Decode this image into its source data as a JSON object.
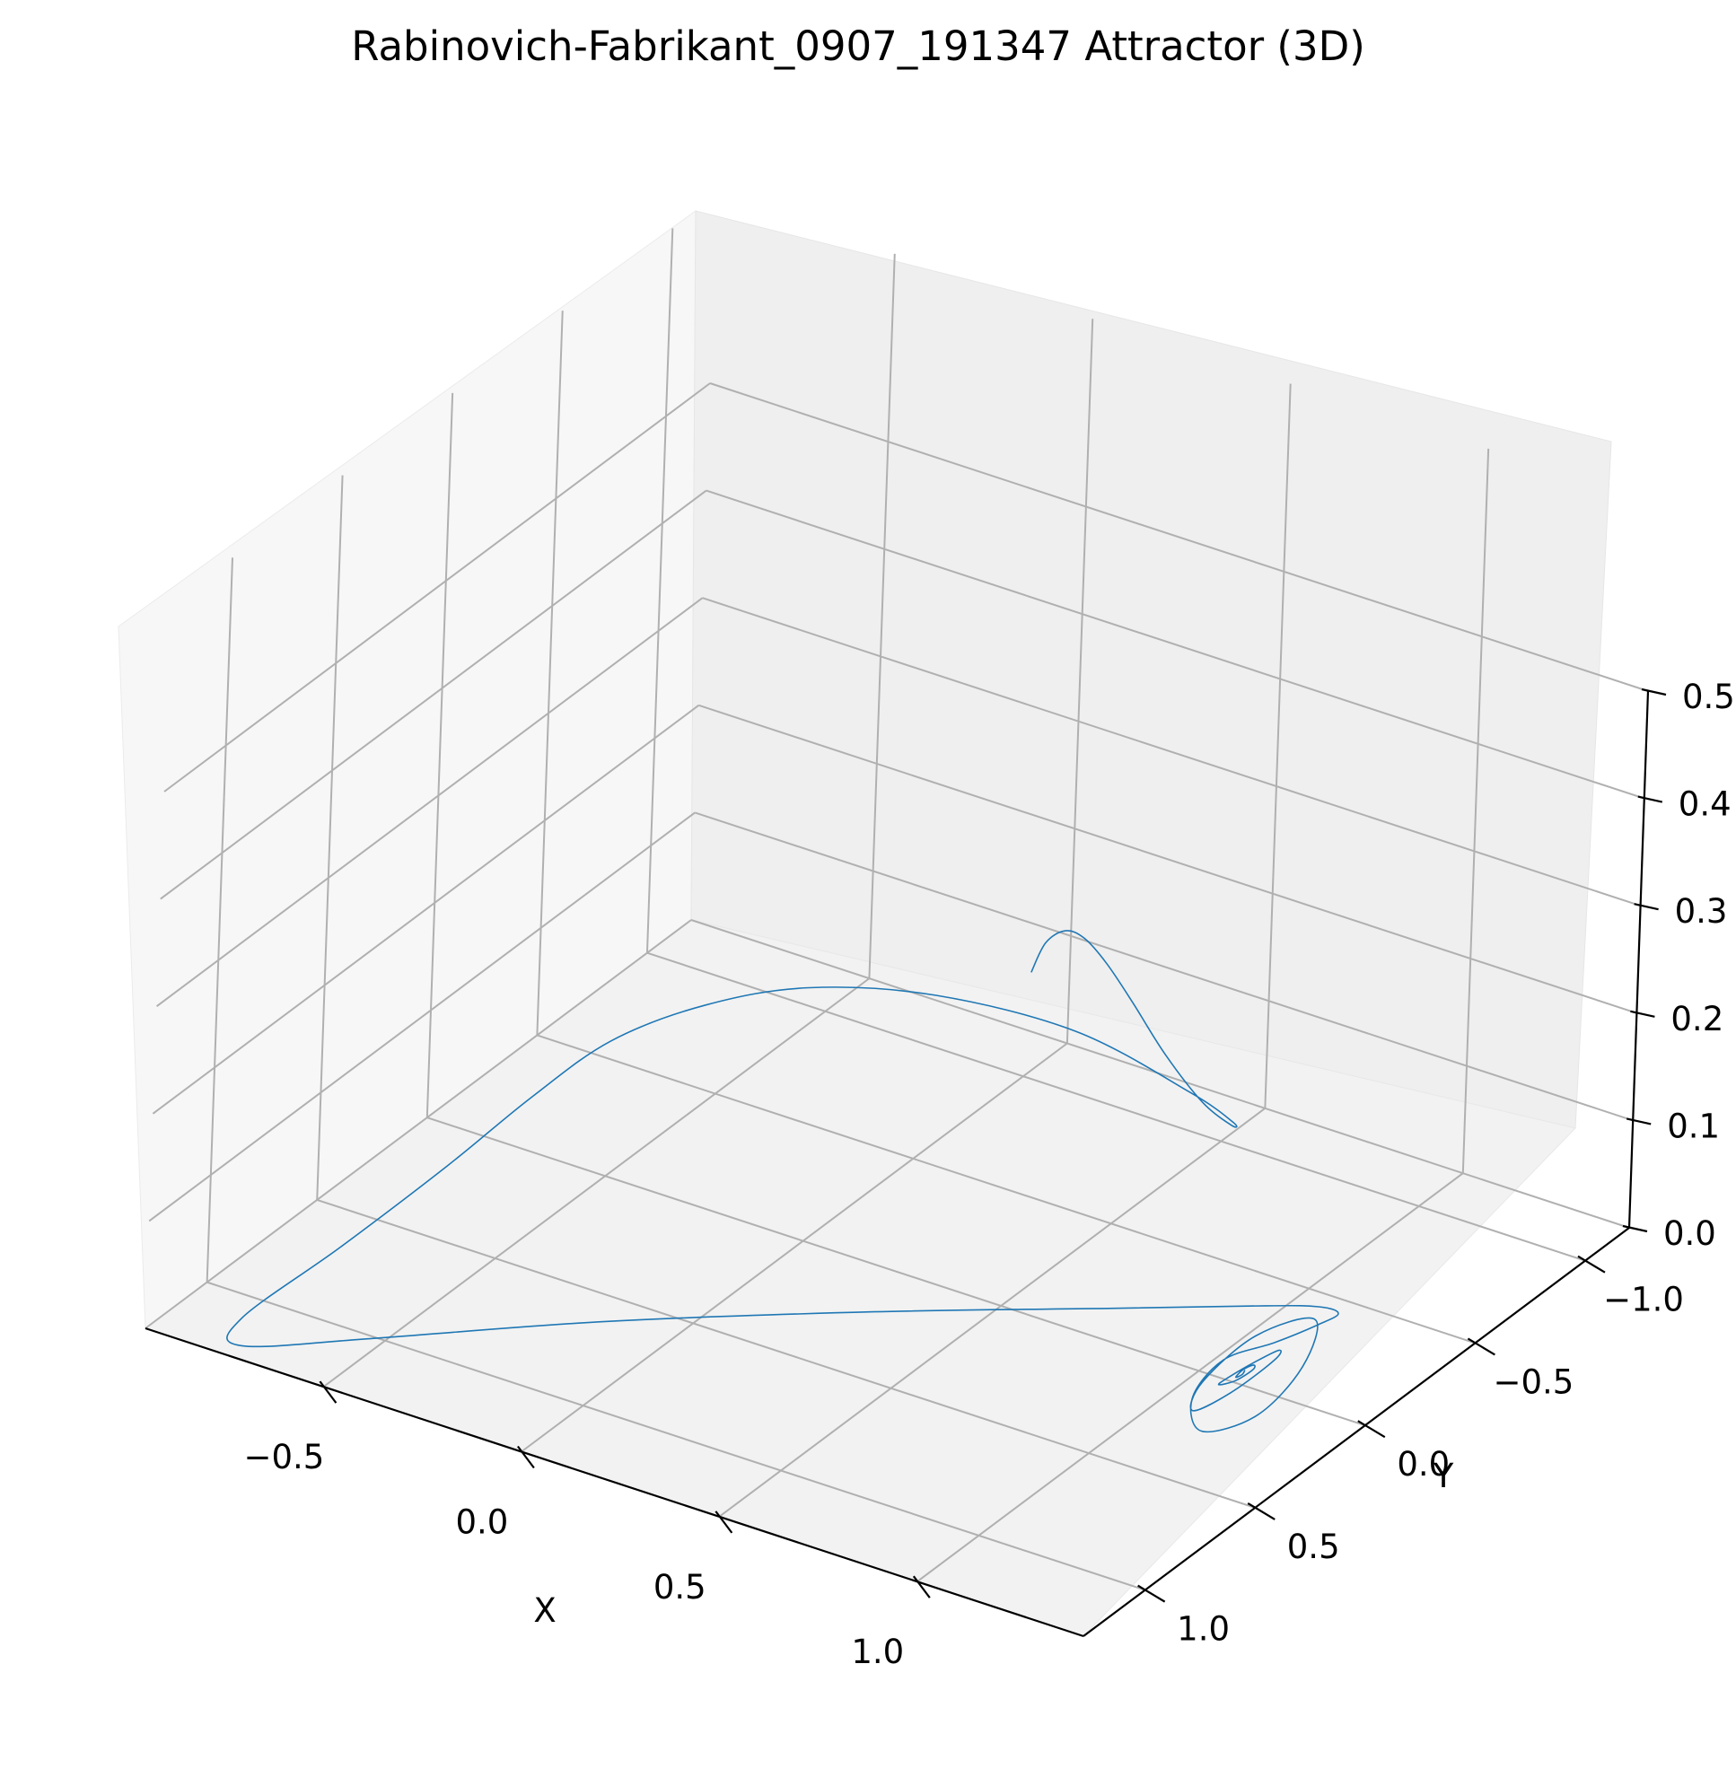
{
  "chart_data": {
    "type": "line",
    "projection": "3d",
    "title": "Rabinovich-Fabrikant_0907_191347 Attractor (3D)",
    "xlabel": "X",
    "ylabel": "Y",
    "zlabel": "",
    "grid": true,
    "xlim": [
      -0.95,
      1.42
    ],
    "ylim": [
      -1.2,
      1.28
    ],
    "zlim": [
      0.0,
      0.5
    ],
    "x_ticks": [
      "−0.5",
      "0.0",
      "0.5",
      "1.0"
    ],
    "y_ticks": [
      "−1.0",
      "−0.5",
      "0.0",
      "0.5",
      "1.0"
    ],
    "z_ticks": [
      "0.0",
      "0.1",
      "0.2",
      "0.3",
      "0.4",
      "0.5"
    ],
    "series": [
      {
        "color": "#1f77b4",
        "x": [
          0.52,
          0.58,
          0.66,
          0.74,
          0.82,
          0.9,
          0.98,
          1.04,
          1.06,
          1.02,
          0.9,
          0.62,
          0.3,
          0.02,
          -0.2,
          -0.38,
          -0.5,
          -0.6,
          -0.7,
          -0.78,
          -0.74,
          -0.52,
          -0.15,
          0.3,
          0.72,
          0.98,
          1.08,
          1.14,
          1.16,
          1.16,
          1.14,
          1.2,
          1.27,
          1.3,
          1.27,
          1.21,
          1.16,
          1.15,
          1.18,
          1.22,
          1.24,
          1.22,
          1.19,
          1.18,
          1.19,
          1.21,
          1.21,
          1.2,
          1.195,
          1.2,
          1.205,
          1.2
        ],
        "y": [
          -0.05,
          0.0,
          0.06,
          0.12,
          0.16,
          0.18,
          0.17,
          0.1,
          0.0,
          -0.08,
          -0.1,
          -0.08,
          -0.02,
          0.05,
          0.12,
          0.22,
          0.36,
          0.55,
          0.85,
          1.15,
          1.22,
          1.0,
          0.62,
          0.22,
          -0.12,
          -0.34,
          -0.4,
          -0.38,
          -0.25,
          -0.05,
          0.15,
          0.4,
          0.48,
          0.28,
          0.02,
          -0.14,
          0.04,
          0.26,
          0.36,
          0.26,
          0.1,
          0.04,
          0.1,
          0.2,
          0.26,
          0.22,
          0.14,
          0.12,
          0.16,
          0.2,
          0.18,
          0.16
        ],
        "z": [
          0.306,
          0.348,
          0.378,
          0.39,
          0.382,
          0.358,
          0.318,
          0.27,
          0.236,
          0.222,
          0.232,
          0.258,
          0.262,
          0.246,
          0.214,
          0.174,
          0.128,
          0.082,
          0.04,
          0.01,
          0.0,
          0.0,
          0.002,
          0.004,
          0.006,
          0.006,
          0.008,
          0.012,
          0.024,
          0.038,
          0.05,
          0.06,
          0.05,
          0.038,
          0.04,
          0.052,
          0.058,
          0.048,
          0.04,
          0.046,
          0.054,
          0.052,
          0.046,
          0.046,
          0.05,
          0.05,
          0.048,
          0.048,
          0.049,
          0.049,
          0.049,
          0.049
        ]
      }
    ]
  }
}
